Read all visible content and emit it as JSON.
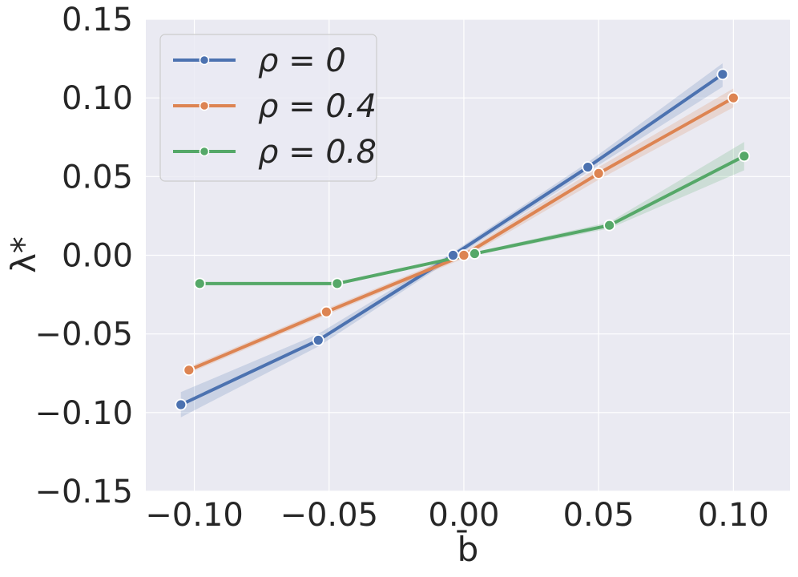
{
  "chart_data": {
    "type": "line",
    "xlabel": "b̄",
    "ylabel": "λ*",
    "xlim": [
      -0.118,
      0.121
    ],
    "ylim": [
      -0.15,
      0.15
    ],
    "xticks": [
      -0.1,
      -0.05,
      0.0,
      0.05,
      0.1
    ],
    "yticks": [
      -0.15,
      -0.1,
      -0.05,
      0.0,
      0.05,
      0.1,
      0.15
    ],
    "xtick_labels": [
      "−0.10",
      "−0.05",
      "0.00",
      "0.05",
      "0.10"
    ],
    "ytick_labels": [
      "−0.15",
      "−0.10",
      "−0.05",
      "0.00",
      "0.05",
      "0.10",
      "0.15"
    ],
    "grid": true,
    "legend_position": "top-left",
    "background": "#eaeaf2",
    "series": [
      {
        "name": "ρ = 0",
        "color": "#4c72b0",
        "x": [
          -0.105,
          -0.054,
          -0.004,
          0.046,
          0.096
        ],
        "y": [
          -0.095,
          -0.054,
          0.0,
          0.056,
          0.115
        ],
        "band_lower": [
          -0.103,
          -0.058,
          -0.002,
          0.053,
          0.107
        ],
        "band_upper": [
          -0.087,
          -0.05,
          0.002,
          0.059,
          0.122
        ]
      },
      {
        "name": "ρ = 0.4",
        "color": "#dd8452",
        "x": [
          -0.102,
          -0.051,
          0.0,
          0.05,
          0.1
        ],
        "y": [
          -0.073,
          -0.036,
          0.0,
          0.052,
          0.1
        ],
        "band_lower": [
          -0.075,
          -0.038,
          -0.002,
          0.048,
          0.094
        ],
        "band_upper": [
          -0.071,
          -0.034,
          0.002,
          0.056,
          0.106
        ]
      },
      {
        "name": "ρ = 0.8",
        "color": "#55a868",
        "x": [
          -0.098,
          -0.047,
          0.004,
          0.054,
          0.104
        ],
        "y": [
          -0.018,
          -0.018,
          0.001,
          0.019,
          0.063
        ],
        "band_lower": [
          -0.019,
          -0.019,
          0.0,
          0.017,
          0.054
        ],
        "band_upper": [
          -0.017,
          -0.017,
          0.002,
          0.021,
          0.072
        ]
      }
    ]
  }
}
